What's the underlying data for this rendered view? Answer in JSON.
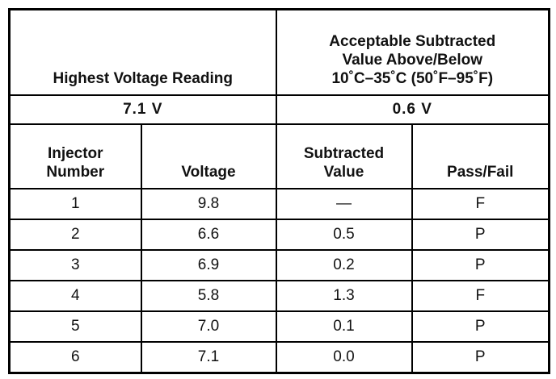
{
  "header": {
    "reading_label": "Highest Voltage Reading",
    "acceptable_label": [
      "Acceptable Subtracted",
      "Value Above/Below",
      "10˚C–35˚C (50˚F–95˚F)"
    ],
    "reading_value": "7.1 V",
    "acceptable_value": "0.6 V"
  },
  "table": {
    "columns": [
      [
        "Injector",
        "Number"
      ],
      [
        "Voltage"
      ],
      [
        "Subtracted",
        "Value"
      ],
      [
        "Pass/Fail"
      ]
    ],
    "rows": [
      [
        "1",
        "9.8",
        "—",
        "F"
      ],
      [
        "2",
        "6.6",
        "0.5",
        "P"
      ],
      [
        "3",
        "6.9",
        "0.2",
        "P"
      ],
      [
        "4",
        "5.8",
        "1.3",
        "F"
      ],
      [
        "5",
        "7.0",
        "0.1",
        "P"
      ],
      [
        "6",
        "7.1",
        "0.0",
        "P"
      ]
    ]
  }
}
